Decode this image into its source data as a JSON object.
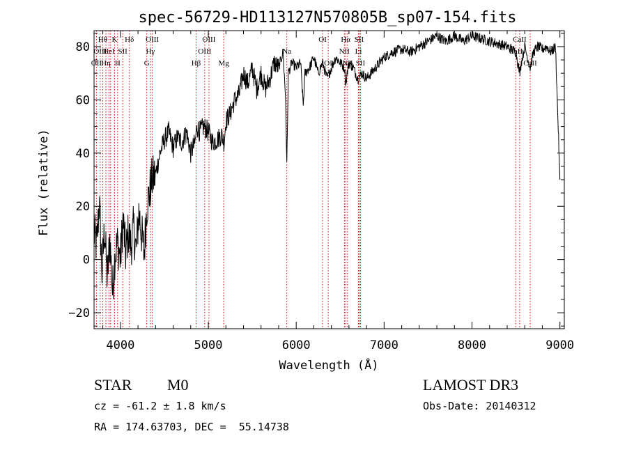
{
  "chart_data": {
    "type": "line",
    "title": "spec-56729-HD113127N570805B_sp07-154.fits",
    "xlabel": "Wavelength (Å)",
    "ylabel": "Flux (relative)",
    "xlim": [
      3700,
      9050
    ],
    "ylim": [
      -26,
      86
    ],
    "xticks": [
      4000,
      5000,
      6000,
      7000,
      8000,
      9000
    ],
    "yticks": [
      -20,
      0,
      20,
      40,
      60,
      80
    ],
    "line_color": "#000000",
    "marker_color": "#cc0000",
    "series": [
      {
        "x": [
          3700,
          3730,
          3760,
          3790,
          3820,
          3850,
          3880,
          3910,
          3940,
          3970,
          4000,
          4030,
          4060,
          4090,
          4120,
          4150,
          4180,
          4210,
          4240,
          4270,
          4300,
          4330,
          4360,
          4400,
          4450,
          4500,
          4550,
          4600,
          4650,
          4700,
          4750,
          4800,
          4850,
          4870,
          4900,
          4950,
          5000,
          5050,
          5100,
          5150,
          5180,
          5200,
          5250,
          5300,
          5350,
          5400,
          5450,
          5500,
          5550,
          5600,
          5650,
          5700,
          5750,
          5800,
          5850,
          5880,
          5893,
          5910,
          5950,
          6000,
          6050,
          6080,
          6100,
          6150,
          6200,
          6250,
          6300,
          6350,
          6400,
          6450,
          6500,
          6550,
          6563,
          6580,
          6600,
          6650,
          6700,
          6750,
          6800,
          6850,
          6900,
          6950,
          7000,
          7100,
          7200,
          7300,
          7400,
          7500,
          7600,
          7700,
          7800,
          7900,
          8000,
          8100,
          8200,
          8300,
          8400,
          8450,
          8500,
          8542,
          8560,
          8600,
          8662,
          8700,
          8750,
          8800,
          8850,
          8900,
          8950,
          9000
        ],
        "y": [
          10,
          5,
          22,
          -5,
          12,
          -8,
          8,
          -12,
          3,
          6,
          0,
          15,
          2,
          10,
          5,
          12,
          3,
          18,
          10,
          2,
          20,
          25,
          30,
          32,
          40,
          45,
          48,
          42,
          46,
          44,
          48,
          40,
          44,
          50,
          48,
          50,
          48,
          44,
          45,
          47,
          44,
          52,
          55,
          60,
          62,
          70,
          66,
          72,
          64,
          70,
          64,
          68,
          74,
          72,
          78,
          60,
          35,
          70,
          74,
          72,
          74,
          58,
          70,
          72,
          76,
          70,
          74,
          68,
          72,
          76,
          74,
          72,
          66,
          70,
          74,
          72,
          68,
          70,
          68,
          70,
          72,
          74,
          76,
          78,
          79,
          78,
          80,
          82,
          84,
          82,
          84,
          82,
          84,
          83,
          82,
          81,
          80,
          79,
          78,
          70,
          74,
          80,
          72,
          78,
          80,
          79,
          80,
          78,
          80,
          30
        ]
      }
    ],
    "line_markers": [
      {
        "x": 3727,
        "label": "OII",
        "row": 2
      },
      {
        "x": 3770,
        "label": "OIII",
        "row": 1
      },
      {
        "x": 3798,
        "label": "Hθ",
        "row": 0
      },
      {
        "x": 3835,
        "label": "Hη",
        "row": 2
      },
      {
        "x": 3869,
        "label": "HeI",
        "row": 1
      },
      {
        "x": 3889,
        "label": "",
        "row": 0
      },
      {
        "x": 3934,
        "label": "K",
        "row": 0
      },
      {
        "x": 3968,
        "label": "H",
        "row": 2
      },
      {
        "x": 4026,
        "label": "SII",
        "row": 1
      },
      {
        "x": 4102,
        "label": "Hδ",
        "row": 0
      },
      {
        "x": 4300,
        "label": "G",
        "row": 2
      },
      {
        "x": 4341,
        "label": "Hγ",
        "row": 1
      },
      {
        "x": 4363,
        "label": "OIII",
        "row": 0
      },
      {
        "x": 4861,
        "label": "Hβ",
        "row": 2
      },
      {
        "x": 4959,
        "label": "OIII",
        "row": 1
      },
      {
        "x": 5007,
        "label": "OIII",
        "row": 0
      },
      {
        "x": 5175,
        "label": "Mg",
        "row": 2
      },
      {
        "x": 5893,
        "label": "Na",
        "row": 1
      },
      {
        "x": 6300,
        "label": "OI",
        "row": 0
      },
      {
        "x": 6364,
        "label": "OI",
        "row": 2
      },
      {
        "x": 6548,
        "label": "NII",
        "row": 1
      },
      {
        "x": 6563,
        "label": "Hα",
        "row": 0
      },
      {
        "x": 6584,
        "label": "NII",
        "row": 2
      },
      {
        "x": 6708,
        "label": "Li",
        "row": 1
      },
      {
        "x": 6716,
        "label": "SII",
        "row": 0
      },
      {
        "x": 6731,
        "label": "SII",
        "row": 2
      },
      {
        "x": 8498,
        "label": "CaII",
        "row": 1
      },
      {
        "x": 8542,
        "label": "CaII",
        "row": 0
      },
      {
        "x": 8662,
        "label": "CaII",
        "row": 2
      }
    ]
  },
  "info": {
    "object_class": "STAR",
    "subclass": "M0",
    "survey": "LAMOST DR3",
    "cz": "cz = -61.2 ± 1.8 km/s",
    "obs_date": "Obs-Date: 20140312",
    "coords": "RA = 174.63703, DEC =  55.14738"
  }
}
